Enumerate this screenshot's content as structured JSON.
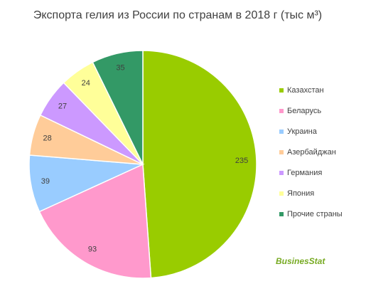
{
  "chart_data": {
    "type": "pie",
    "title": "Экспорта гелия из России по странам в 2018 г (тыс м³)",
    "categories": [
      "Казахстан",
      "Беларусь",
      "Украина",
      "Азербайджан",
      "Германия",
      "Япония",
      "Прочие страны"
    ],
    "values": [
      235,
      93,
      39,
      28,
      27,
      24,
      35
    ],
    "colors": [
      "#99cc00",
      "#ff99cc",
      "#99ccff",
      "#ffcc99",
      "#cc99ff",
      "#ffff99",
      "#339966"
    ],
    "legend": "right",
    "watermark": "BusinesStat"
  }
}
